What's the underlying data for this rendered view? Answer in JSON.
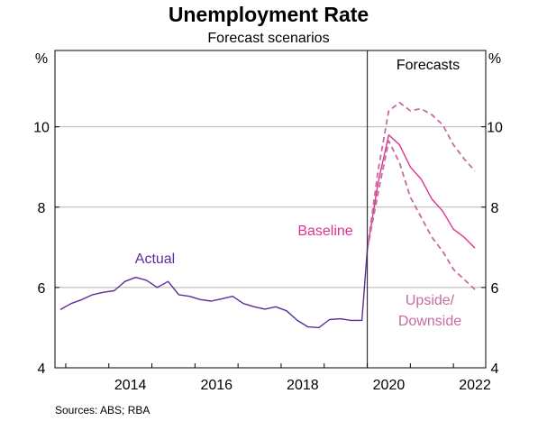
{
  "chart_data": {
    "type": "line",
    "title": "Unemployment Rate",
    "subtitle": "Forecast scenarios",
    "y_unit_left": "%",
    "y_unit_right": "%",
    "ylim": [
      4,
      11.9
    ],
    "xlim": [
      2012.75,
      2022.75
    ],
    "yticks": [
      "4",
      "6",
      "8",
      "10"
    ],
    "xticks": [
      "2014",
      "2016",
      "2018",
      "2020",
      "2022"
    ],
    "grid": true,
    "forecast_start": 2020.0,
    "forecast_label": "Forecasts",
    "source": "Sources:   ABS; RBA",
    "colors": {
      "actual": "#5b2c9e",
      "baseline": "#e0338f",
      "scenarios": "#c86aa2",
      "grid": "#b5b5b5",
      "axis": "#000000",
      "forecast_line": "#333333"
    },
    "series": [
      {
        "name": "Actual",
        "style": "solid",
        "points": [
          [
            2012.875,
            5.45
          ],
          [
            2013.125,
            5.6
          ],
          [
            2013.375,
            5.7
          ],
          [
            2013.625,
            5.82
          ],
          [
            2013.875,
            5.88
          ],
          [
            2014.125,
            5.92
          ],
          [
            2014.375,
            6.15
          ],
          [
            2014.625,
            6.25
          ],
          [
            2014.875,
            6.18
          ],
          [
            2015.125,
            6.0
          ],
          [
            2015.375,
            6.15
          ],
          [
            2015.625,
            5.82
          ],
          [
            2015.875,
            5.78
          ],
          [
            2016.125,
            5.7
          ],
          [
            2016.375,
            5.66
          ],
          [
            2016.625,
            5.72
          ],
          [
            2016.875,
            5.78
          ],
          [
            2017.125,
            5.6
          ],
          [
            2017.375,
            5.52
          ],
          [
            2017.625,
            5.46
          ],
          [
            2017.875,
            5.52
          ],
          [
            2018.125,
            5.42
          ],
          [
            2018.375,
            5.18
          ],
          [
            2018.625,
            5.02
          ],
          [
            2018.875,
            5.0
          ],
          [
            2019.125,
            5.2
          ],
          [
            2019.375,
            5.22
          ],
          [
            2019.625,
            5.18
          ],
          [
            2019.875,
            5.18
          ],
          [
            2020.0,
            6.95
          ]
        ]
      },
      {
        "name": "Baseline",
        "style": "solid",
        "points": [
          [
            2020.0,
            6.95
          ],
          [
            2020.25,
            8.6
          ],
          [
            2020.5,
            9.8
          ],
          [
            2020.75,
            9.55
          ],
          [
            2021.0,
            9.0
          ],
          [
            2021.25,
            8.7
          ],
          [
            2021.5,
            8.2
          ],
          [
            2021.75,
            7.9
          ],
          [
            2022.0,
            7.45
          ],
          [
            2022.25,
            7.25
          ],
          [
            2022.5,
            6.98
          ]
        ]
      },
      {
        "name": "Upside",
        "style": "dashed",
        "points": [
          [
            2020.0,
            6.95
          ],
          [
            2020.25,
            8.35
          ],
          [
            2020.5,
            9.65
          ],
          [
            2020.75,
            9.1
          ],
          [
            2021.0,
            8.25
          ],
          [
            2021.25,
            7.75
          ],
          [
            2021.5,
            7.25
          ],
          [
            2021.75,
            6.9
          ],
          [
            2022.0,
            6.45
          ],
          [
            2022.25,
            6.2
          ],
          [
            2022.5,
            5.95
          ]
        ]
      },
      {
        "name": "Downside",
        "style": "dashed",
        "points": [
          [
            2020.0,
            6.95
          ],
          [
            2020.25,
            8.9
          ],
          [
            2020.5,
            10.4
          ],
          [
            2020.75,
            10.6
          ],
          [
            2021.0,
            10.4
          ],
          [
            2021.25,
            10.45
          ],
          [
            2021.5,
            10.3
          ],
          [
            2021.75,
            10.05
          ],
          [
            2022.0,
            9.55
          ],
          [
            2022.25,
            9.2
          ],
          [
            2022.5,
            8.9
          ]
        ]
      }
    ],
    "labels": {
      "actual": "Actual",
      "baseline": "Baseline",
      "scenarios_line1": "Upside/",
      "scenarios_line2": "Downside"
    }
  }
}
